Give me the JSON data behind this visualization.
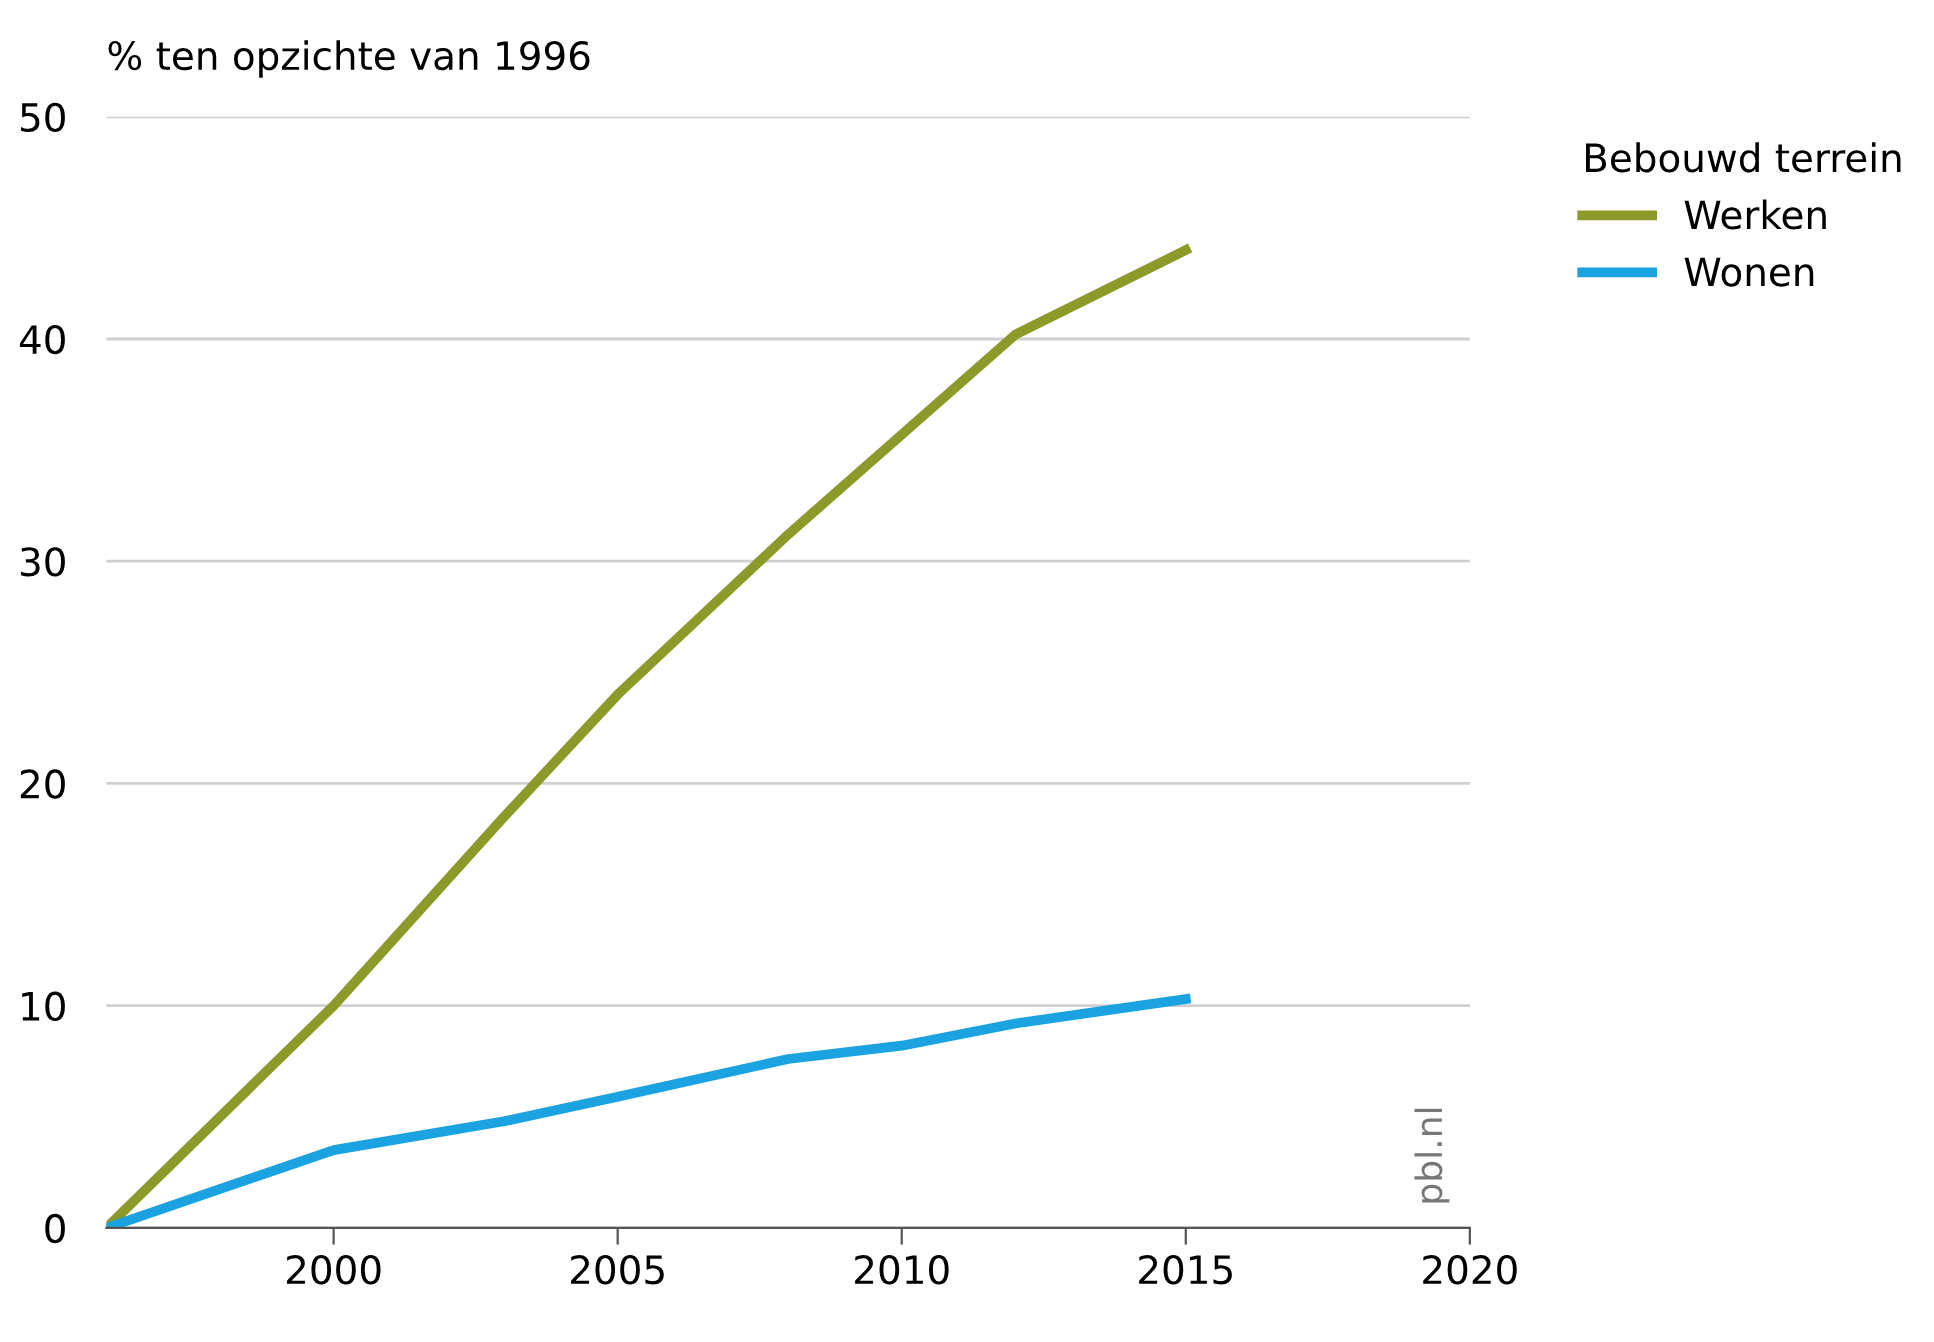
{
  "chart_data": {
    "type": "line",
    "ylabel": "% ten opzichte van 1996",
    "legend_title": "Bebouwd terrein",
    "x": [
      1996,
      2000,
      2003,
      2005,
      2008,
      2010,
      2012,
      2015
    ],
    "series": [
      {
        "name": "Werken",
        "color": "#8c9a2a",
        "values": [
          0,
          10,
          18.5,
          24,
          31.2,
          35.7,
          40.2,
          44
        ]
      },
      {
        "name": "Wonen",
        "color": "#1aa3e0",
        "values": [
          0,
          3.5,
          4.8,
          5.9,
          7.6,
          8.2,
          9.2,
          10.3
        ]
      }
    ],
    "xlim": [
      1996,
      2020
    ],
    "xticks": [
      2000,
      2005,
      2010,
      2015,
      2020
    ],
    "ylim": [
      0,
      50
    ],
    "yticks": [
      0,
      10,
      20,
      30,
      40,
      50
    ],
    "grid": "y",
    "legend": "top right",
    "marker": "none",
    "line_style": "solid",
    "annotations": [
      "pbl.nl"
    ]
  }
}
